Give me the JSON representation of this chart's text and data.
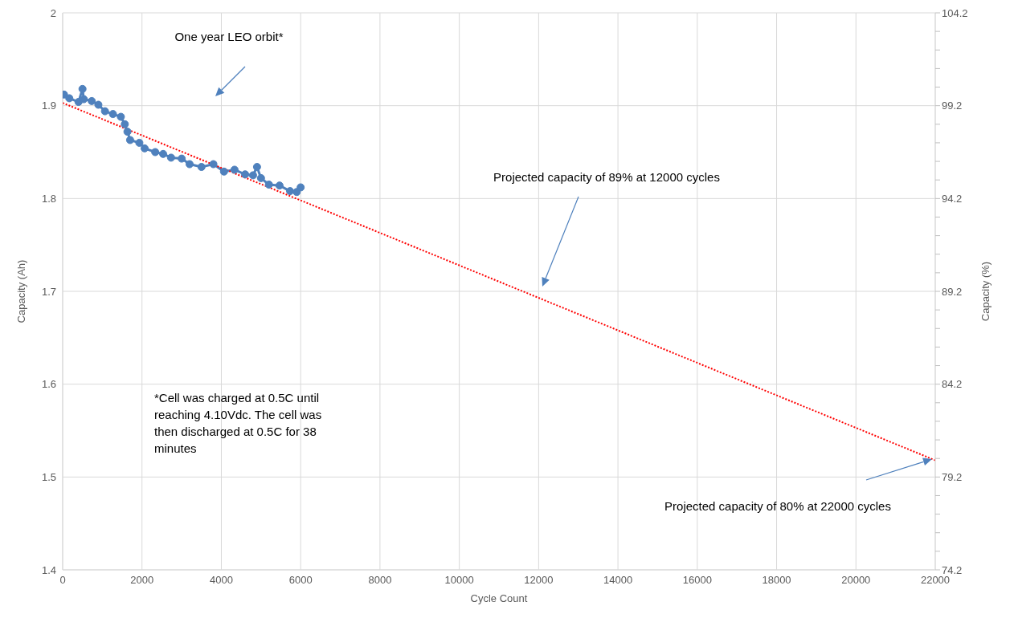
{
  "chart_data": {
    "type": "line",
    "xlabel": "Cycle Count",
    "ylabel": "Capacity (Ah)",
    "y2label": "Capacity (%)",
    "xlim": [
      0,
      22000
    ],
    "xticks": [
      0,
      2000,
      4000,
      6000,
      8000,
      10000,
      12000,
      14000,
      16000,
      18000,
      20000,
      22000
    ],
    "ylim": [
      1.4,
      2
    ],
    "yticks": [
      1.4,
      1.5,
      1.6,
      1.7,
      1.8,
      1.9,
      2
    ],
    "y2lim": [
      74.2,
      104.2
    ],
    "y2ticks": [
      74.2,
      {
        "value": 75.2,
        "label": null
      },
      {
        "value": 76.2,
        "label": null
      },
      {
        "value": 77.2,
        "label": null
      },
      {
        "value": 78.2,
        "label": null
      },
      79.2,
      {
        "value": 80.2,
        "label": null
      },
      {
        "value": 81.2,
        "label": null
      },
      {
        "value": 82.2,
        "label": null
      },
      {
        "value": 83.2,
        "label": null
      },
      84.2,
      {
        "value": 85.2,
        "label": null
      },
      {
        "value": 86.2,
        "label": null
      },
      {
        "value": 87.2,
        "label": null
      },
      {
        "value": 88.2,
        "label": null
      },
      89.2,
      {
        "value": 90.2,
        "label": null
      },
      {
        "value": 91.2,
        "label": null
      },
      {
        "value": 92.2,
        "label": null
      },
      {
        "value": 93.2,
        "label": null
      },
      94.2,
      {
        "value": 95.2,
        "label": null
      },
      {
        "value": 96.2,
        "label": null
      },
      {
        "value": 97.2,
        "label": null
      },
      {
        "value": 98.2,
        "label": null
      },
      99.2,
      {
        "value": 100.2,
        "label": null
      },
      {
        "value": 101.2,
        "label": null
      },
      {
        "value": 102.2,
        "label": null
      },
      {
        "value": 103.2,
        "label": null
      },
      104.2
    ],
    "grid": true,
    "series": [
      {
        "color": "#4f81bd",
        "marker": "circle",
        "line_style": "solid",
        "x": [
          33,
          167,
          400,
          500,
          533,
          733,
          900,
          1067,
          1267,
          1467,
          1567,
          1633,
          1700,
          1933,
          2067,
          2333,
          2533,
          2733,
          3000,
          3200,
          3500,
          3800,
          4067,
          4333,
          4600,
          4800,
          4900,
          5000,
          5200,
          5467,
          5733,
          5900,
          6000
        ],
        "values": [
          1.912,
          1.908,
          1.904,
          1.918,
          1.907,
          1.905,
          1.901,
          1.894,
          1.891,
          1.888,
          1.88,
          1.872,
          1.863,
          1.86,
          1.854,
          1.85,
          1.848,
          1.844,
          1.843,
          1.837,
          1.834,
          1.837,
          1.829,
          1.831,
          1.826,
          1.825,
          1.834,
          1.822,
          1.815,
          1.814,
          1.808,
          1.807,
          1.812
        ]
      },
      {
        "color": "#ff0000",
        "marker": "none",
        "line_style": "dotted",
        "x": [
          0,
          22000
        ],
        "values": [
          1.903,
          1.518
        ]
      }
    ],
    "annotations": [
      "One year LEO orbit*",
      "Projected capacity of 89% at 12000 cycles",
      "Projected capacity of 80% at 22000 cycles",
      "*Cell was charged at 0.5C until reaching 4.10Vdc. The cell was then discharged at 0.5C for 38 minutes"
    ]
  }
}
